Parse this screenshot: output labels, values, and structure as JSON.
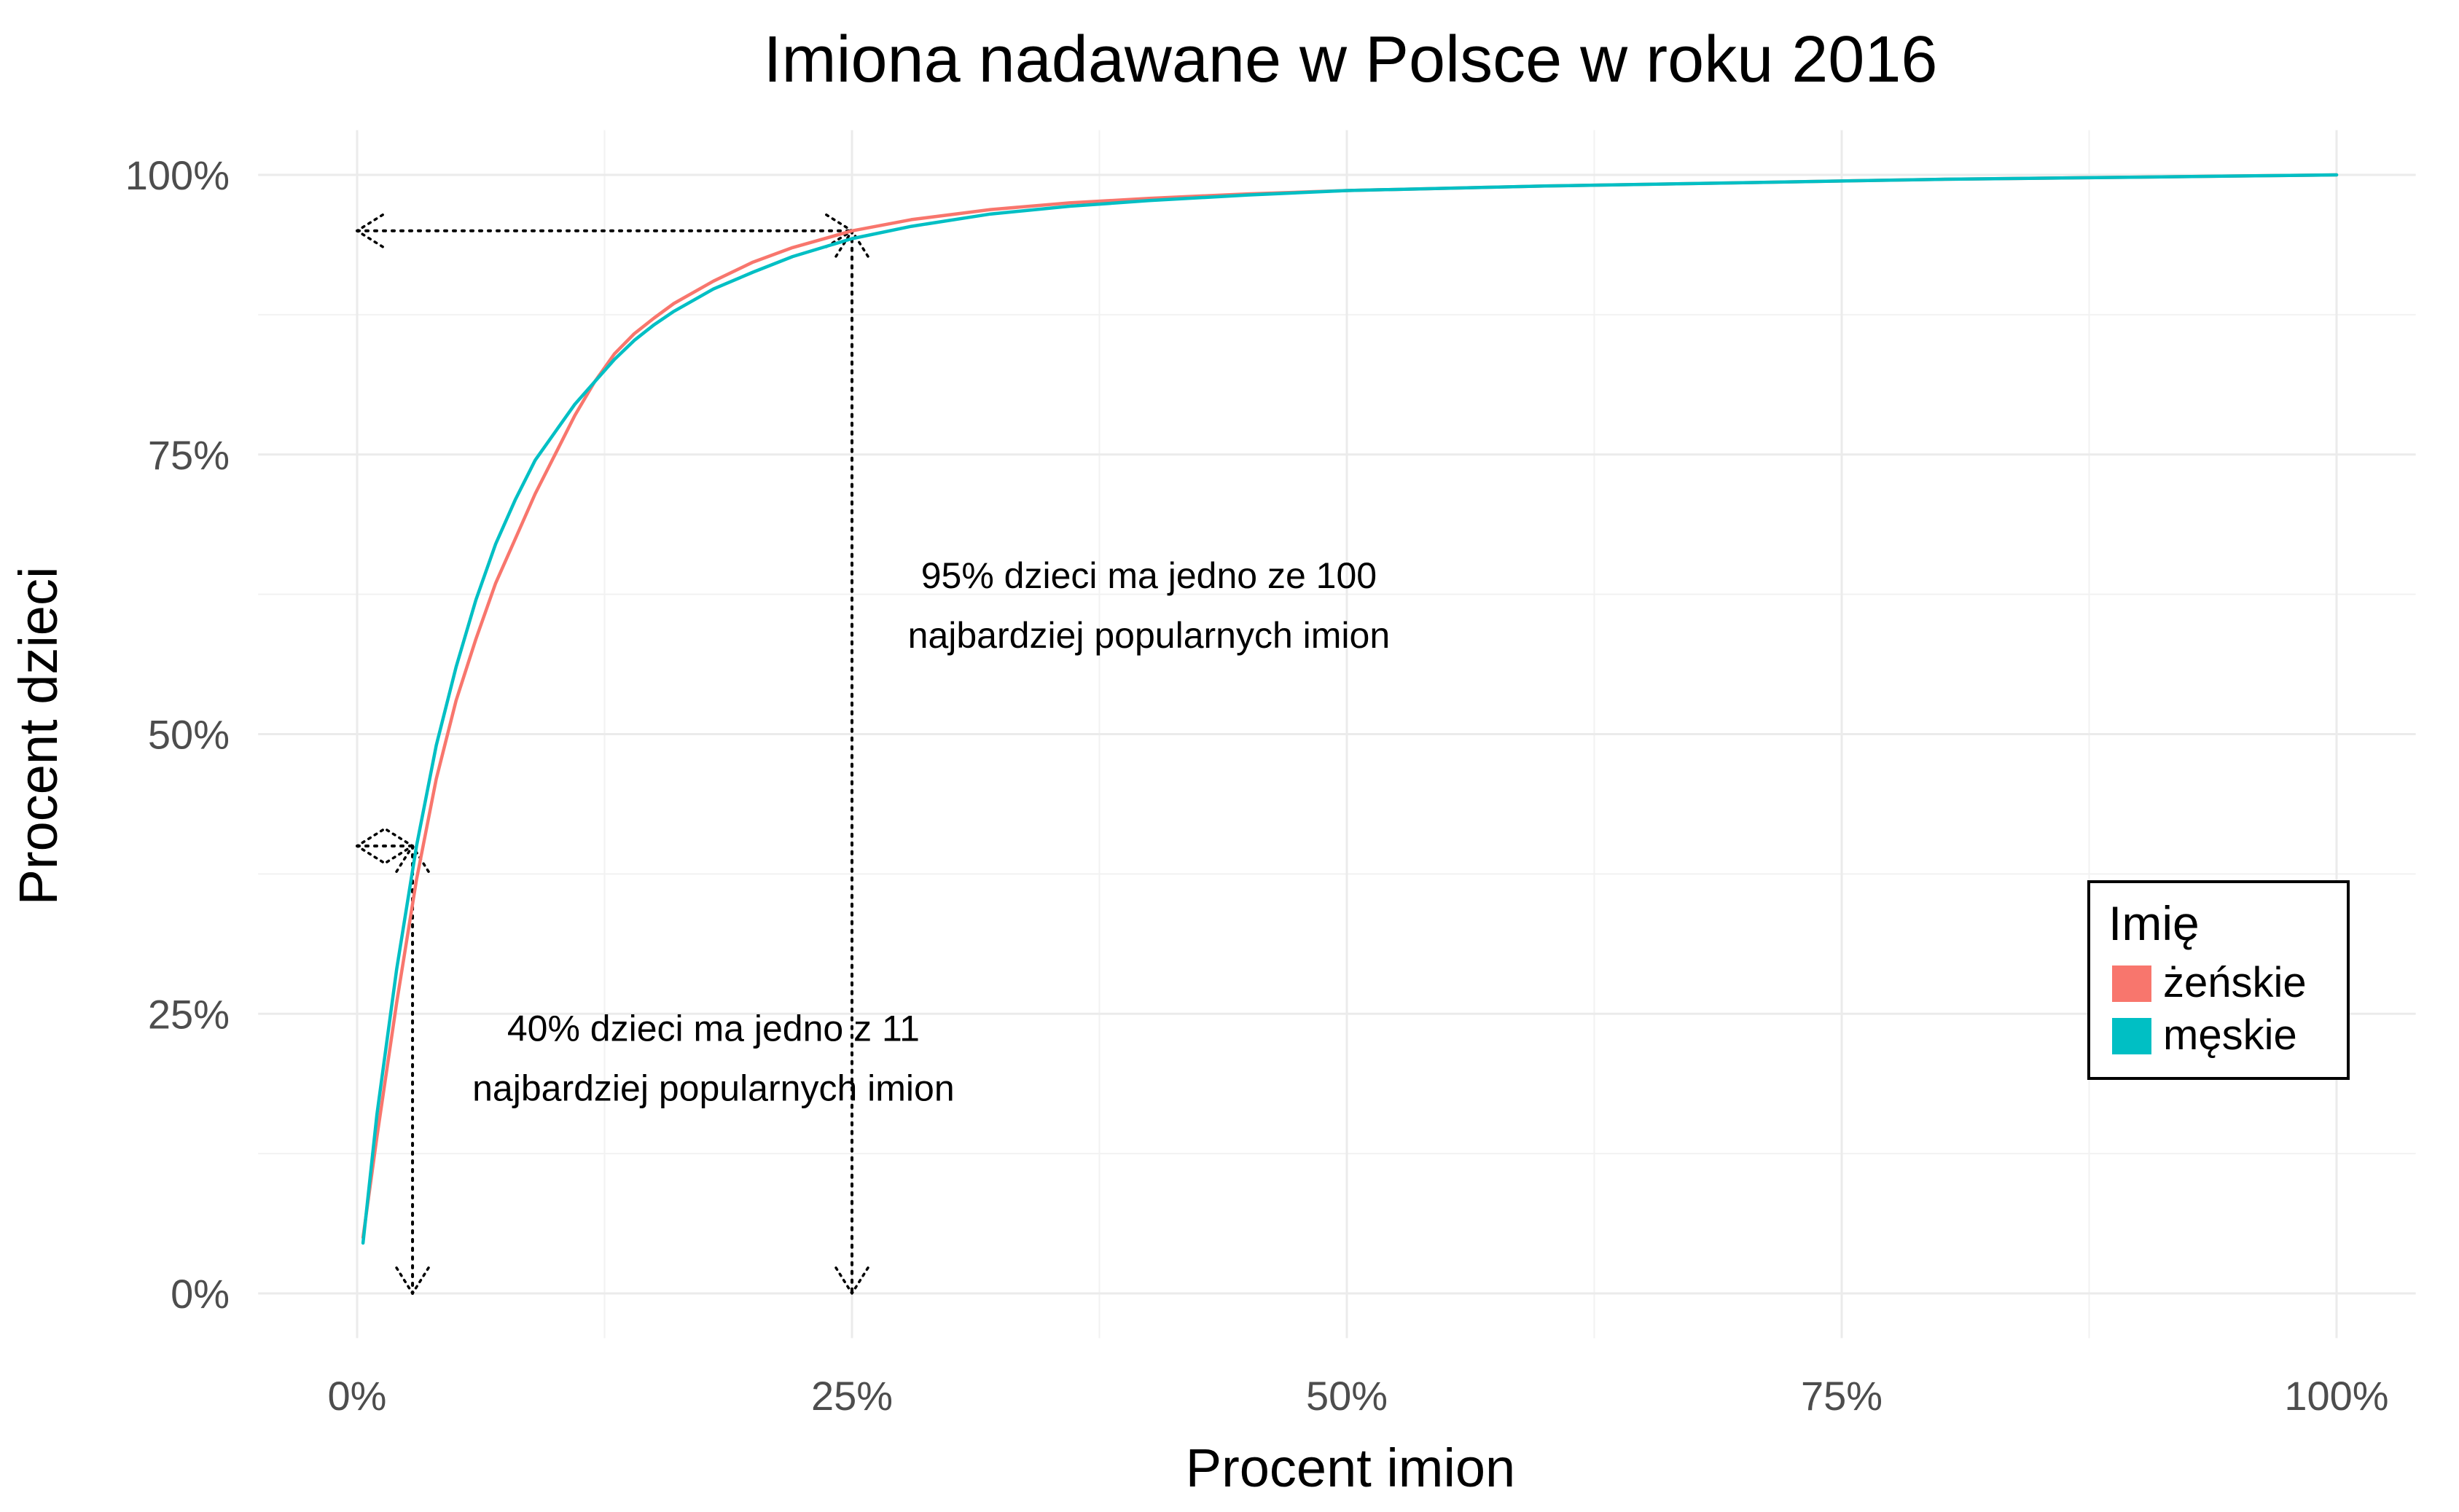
{
  "chart_data": {
    "type": "line",
    "title": "Imiona nadawane w Polsce w roku 2016",
    "xlabel": "Procent imion",
    "ylabel": "Procent dzieci",
    "xlim": [
      0,
      1
    ],
    "ylim": [
      0,
      1
    ],
    "x_ticks": [
      {
        "value": 0,
        "label": "0%"
      },
      {
        "value": 0.25,
        "label": "25%"
      },
      {
        "value": 0.5,
        "label": "50%"
      },
      {
        "value": 0.75,
        "label": "75%"
      },
      {
        "value": 1,
        "label": "100%"
      }
    ],
    "y_ticks": [
      {
        "value": 0,
        "label": "0%"
      },
      {
        "value": 0.25,
        "label": "25%"
      },
      {
        "value": 0.5,
        "label": "50%"
      },
      {
        "value": 0.75,
        "label": "75%"
      },
      {
        "value": 1,
        "label": "100%"
      }
    ],
    "grid": true,
    "legend": {
      "title": "Imię",
      "position": "right"
    },
    "series": [
      {
        "name": "żeńskie",
        "color": "#F8766D",
        "points": [
          [
            0.003,
            0.05
          ],
          [
            0.01,
            0.14
          ],
          [
            0.02,
            0.26
          ],
          [
            0.03,
            0.37
          ],
          [
            0.04,
            0.46
          ],
          [
            0.05,
            0.53
          ],
          [
            0.06,
            0.585
          ],
          [
            0.07,
            0.635
          ],
          [
            0.08,
            0.675
          ],
          [
            0.09,
            0.715
          ],
          [
            0.1,
            0.75
          ],
          [
            0.11,
            0.785
          ],
          [
            0.12,
            0.815
          ],
          [
            0.13,
            0.84
          ],
          [
            0.14,
            0.858
          ],
          [
            0.15,
            0.872
          ],
          [
            0.16,
            0.885
          ],
          [
            0.18,
            0.905
          ],
          [
            0.2,
            0.922
          ],
          [
            0.22,
            0.935
          ],
          [
            0.25,
            0.95
          ],
          [
            0.28,
            0.96
          ],
          [
            0.32,
            0.969
          ],
          [
            0.36,
            0.975
          ],
          [
            0.4,
            0.979
          ],
          [
            0.45,
            0.983
          ],
          [
            0.5,
            0.986
          ],
          [
            0.6,
            0.99
          ],
          [
            0.7,
            0.993
          ],
          [
            0.8,
            0.996
          ],
          [
            0.9,
            0.998
          ],
          [
            1.0,
            1.0
          ]
        ]
      },
      {
        "name": "męskie",
        "color": "#00BFC4",
        "points": [
          [
            0.003,
            0.045
          ],
          [
            0.01,
            0.16
          ],
          [
            0.02,
            0.29
          ],
          [
            0.03,
            0.4
          ],
          [
            0.04,
            0.49
          ],
          [
            0.05,
            0.56
          ],
          [
            0.06,
            0.62
          ],
          [
            0.07,
            0.67
          ],
          [
            0.08,
            0.71
          ],
          [
            0.09,
            0.745
          ],
          [
            0.1,
            0.77
          ],
          [
            0.11,
            0.795
          ],
          [
            0.12,
            0.815
          ],
          [
            0.13,
            0.835
          ],
          [
            0.14,
            0.852
          ],
          [
            0.15,
            0.866
          ],
          [
            0.16,
            0.878
          ],
          [
            0.18,
            0.898
          ],
          [
            0.2,
            0.913
          ],
          [
            0.22,
            0.927
          ],
          [
            0.25,
            0.943
          ],
          [
            0.28,
            0.954
          ],
          [
            0.32,
            0.965
          ],
          [
            0.36,
            0.972
          ],
          [
            0.4,
            0.977
          ],
          [
            0.45,
            0.982
          ],
          [
            0.5,
            0.986
          ],
          [
            0.6,
            0.99
          ],
          [
            0.7,
            0.993
          ],
          [
            0.8,
            0.996
          ],
          [
            0.9,
            0.998
          ],
          [
            1.0,
            1.0
          ]
        ]
      }
    ],
    "annotations": [
      {
        "point": [
          0.028,
          0.4
        ],
        "lines": [
          "40% dzieci ma jedno z 11",
          "najbardziej popularnych imion"
        ],
        "text_anchor": [
          0.18,
          0.21
        ]
      },
      {
        "point": [
          0.25,
          0.95
        ],
        "lines": [
          "95% dzieci ma jedno ze 100",
          "najbardziej popularnych imion"
        ],
        "text_anchor": [
          0.4,
          0.615
        ]
      }
    ]
  }
}
